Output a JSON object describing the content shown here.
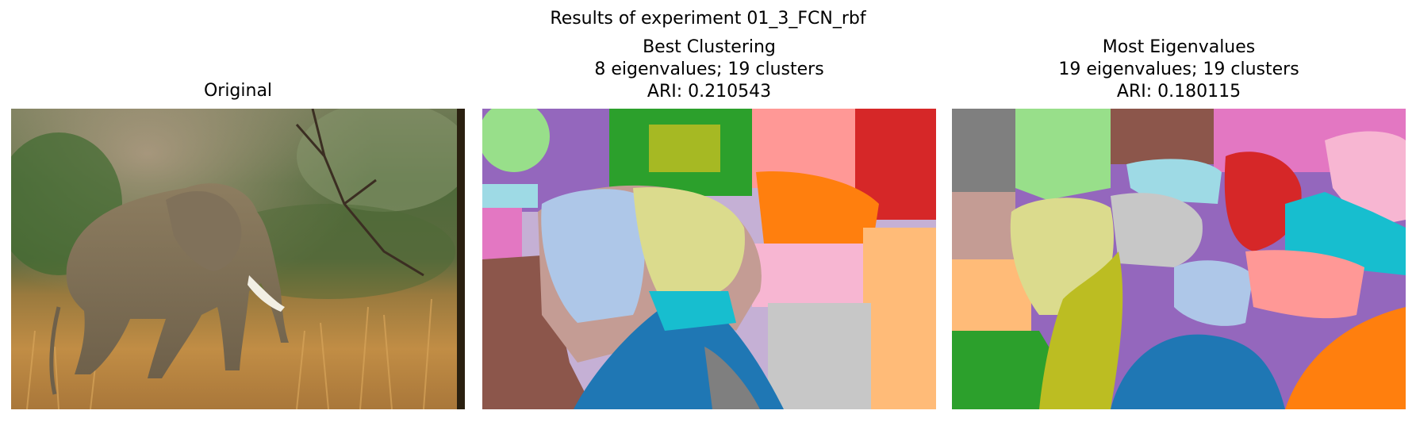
{
  "figure": {
    "suptitle": "Results of experiment 01_3_FCN_rbf"
  },
  "panels": [
    {
      "id": "original",
      "title_lines": [
        "Original"
      ],
      "content": "elephant-photo"
    },
    {
      "id": "best",
      "title_lines": [
        "Best Clustering",
        "8 eigenvalues; 19 clusters",
        "ARI: 0.210543"
      ],
      "content": "segmentation-map"
    },
    {
      "id": "most",
      "title_lines": [
        "Most Eigenvalues",
        "19 eigenvalues; 19 clusters",
        "ARI: 0.180115"
      ],
      "content": "segmentation-map"
    }
  ],
  "palette": [
    "#1f77b4",
    "#aec7e8",
    "#ff7f0e",
    "#ffbb78",
    "#2ca02c",
    "#98df8a",
    "#d62728",
    "#ff9896",
    "#9467bd",
    "#c5b0d5",
    "#8c564b",
    "#c49c94",
    "#e377c2",
    "#f7b6d2",
    "#7f7f7f",
    "#c7c7c7",
    "#bcbd22",
    "#dbdb8d",
    "#17becf",
    "#9edae5"
  ]
}
